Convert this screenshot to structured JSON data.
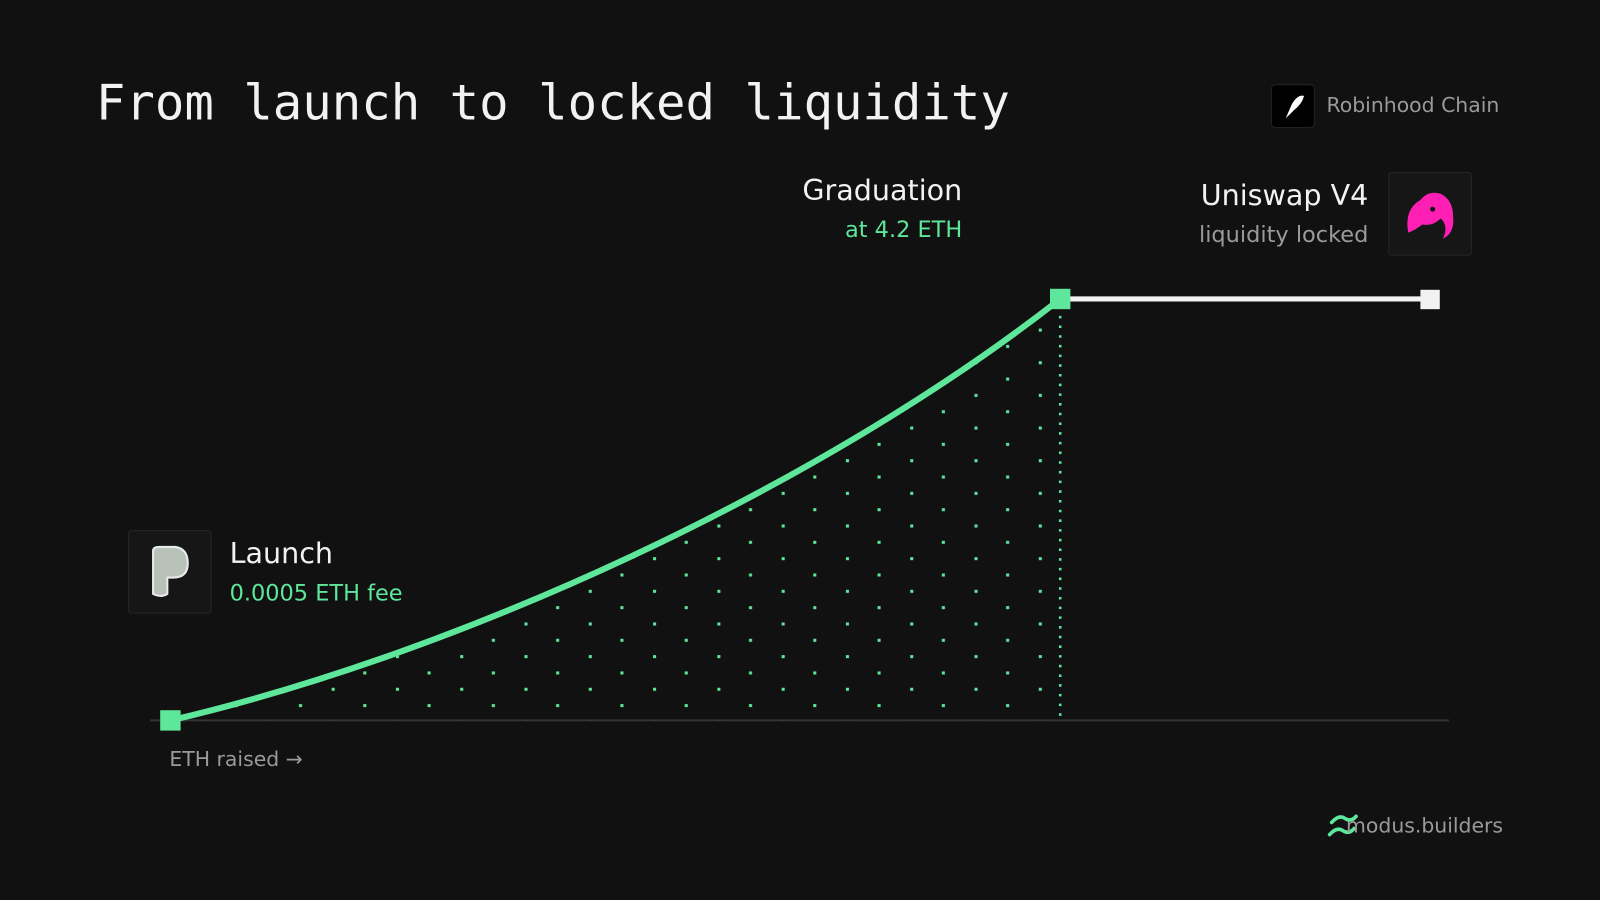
{
  "header": {
    "title": "From launch to locked liquidity",
    "brand": "Robinhood Chain"
  },
  "milestones": [
    {
      "label": "Launch",
      "detail": "0.0005 ETH fee"
    },
    {
      "label": "Graduation",
      "detail": "at 4.2 ETH"
    },
    {
      "label": "Uniswap V4",
      "detail": "liquidity locked"
    }
  ],
  "axis_label": "ETH raised →",
  "footer": {
    "site": "modus.builders"
  }
}
